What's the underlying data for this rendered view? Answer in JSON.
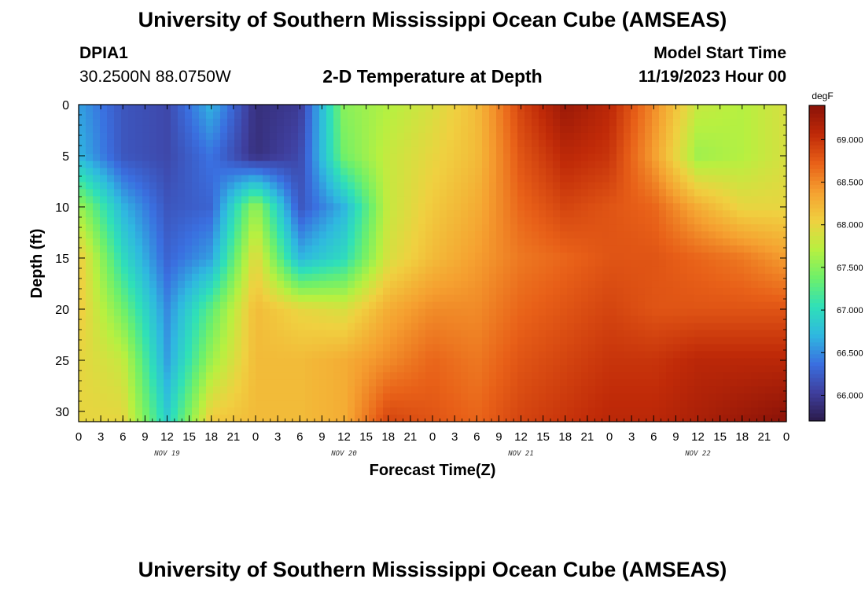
{
  "header": {
    "title": "University of Southern Mississippi Ocean Cube (AMSEAS)",
    "station_id": "DPIA1",
    "coordinates": "30.2500N  88.0750W",
    "plot_title": "2-D Temperature at Depth",
    "model_start_label": "Model Start Time",
    "model_start_value": "11/19/2023 Hour 00"
  },
  "footer": {
    "title": "University of Southern Mississippi Ocean Cube (AMSEAS)"
  },
  "chart_data": {
    "type": "heatmap",
    "title": "2-D Temperature at Depth",
    "xlabel": "Forecast Time(Z)",
    "ylabel": "Depth (ft)",
    "x_unit": "hours since 11/19/2023 00Z",
    "xlim": [
      0,
      96
    ],
    "ylim": [
      31,
      0
    ],
    "x_tick_labels": [
      "0",
      "3",
      "6",
      "9",
      "12",
      "15",
      "18",
      "21",
      "0",
      "3",
      "6",
      "9",
      "12",
      "15",
      "18",
      "21",
      "0",
      "3",
      "6",
      "9",
      "12",
      "15",
      "18",
      "21",
      "0",
      "3",
      "6",
      "9",
      "12",
      "15",
      "18",
      "21",
      "0"
    ],
    "day_labels": [
      "NOV 19",
      "NOV 20",
      "NOV 21",
      "NOV 22"
    ],
    "y_ticks": [
      0,
      5,
      10,
      15,
      20,
      25,
      30
    ],
    "colorbar": {
      "unit": "degF",
      "range": [
        65.7,
        69.4
      ],
      "ticks": [
        "66.000",
        "66.500",
        "67.000",
        "67.500",
        "68.000",
        "68.500",
        "69.000"
      ],
      "colors": [
        "#2b1a4a",
        "#3f3f9e",
        "#3a6fe0",
        "#2fb8e0",
        "#2fe0b8",
        "#6ef06a",
        "#b8f040",
        "#f0d040",
        "#f5a030",
        "#e86018",
        "#c02a08",
        "#8a1208"
      ]
    },
    "x": [
      0,
      6,
      12,
      18,
      24,
      30,
      36,
      42,
      48,
      54,
      60,
      66,
      72,
      78,
      84,
      90,
      96
    ],
    "y": [
      0,
      5,
      10,
      15,
      20,
      25,
      31
    ],
    "z": [
      [
        66.6,
        66.2,
        66.1,
        66.7,
        65.9,
        66.0,
        67.5,
        67.7,
        67.9,
        68.2,
        68.9,
        69.3,
        69.1,
        68.5,
        67.8,
        67.7,
        67.9
      ],
      [
        66.7,
        66.2,
        66.1,
        66.4,
        65.9,
        66.1,
        67.4,
        67.8,
        68.0,
        68.2,
        68.8,
        69.1,
        69.0,
        68.4,
        67.6,
        67.7,
        67.9
      ],
      [
        67.6,
        66.7,
        66.2,
        66.3,
        67.6,
        66.2,
        66.7,
        67.8,
        68.1,
        68.3,
        68.7,
        68.9,
        68.8,
        68.7,
        68.3,
        68.0,
        68.0
      ],
      [
        68.1,
        67.0,
        66.3,
        66.6,
        68.0,
        66.7,
        67.0,
        67.9,
        68.2,
        68.4,
        68.6,
        68.7,
        68.8,
        68.8,
        68.7,
        68.6,
        68.4
      ],
      [
        68.1,
        67.4,
        66.5,
        67.3,
        68.2,
        68.0,
        67.9,
        68.3,
        68.5,
        68.5,
        68.7,
        68.8,
        68.9,
        68.8,
        68.8,
        68.8,
        68.8
      ],
      [
        68.0,
        67.8,
        66.6,
        67.6,
        68.2,
        68.2,
        68.3,
        68.5,
        68.7,
        68.6,
        68.8,
        68.9,
        69.0,
        69.0,
        69.1,
        69.1,
        69.1
      ],
      [
        68.0,
        68.0,
        66.9,
        68.1,
        68.2,
        68.2,
        68.3,
        68.9,
        68.8,
        68.7,
        68.9,
        69.0,
        69.1,
        69.1,
        69.2,
        69.3,
        69.4
      ]
    ]
  }
}
